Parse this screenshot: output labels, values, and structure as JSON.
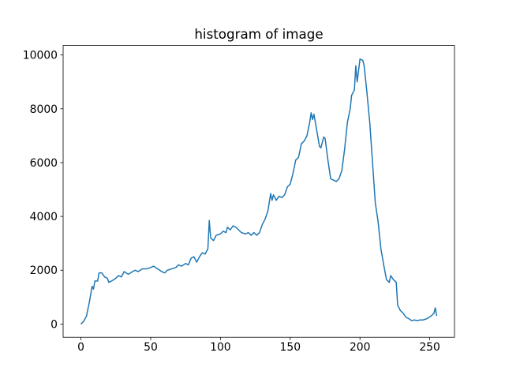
{
  "chart_data": {
    "type": "line",
    "title": "histogram of image",
    "color": "#1f77b4",
    "x": [
      0,
      2,
      4,
      6,
      8,
      9,
      10,
      12,
      13,
      15,
      17,
      19,
      20,
      22,
      25,
      27,
      29,
      31,
      34,
      37,
      39,
      41,
      44,
      47,
      50,
      52,
      55,
      58,
      60,
      62,
      65,
      68,
      70,
      72,
      75,
      77,
      79,
      81,
      83,
      85,
      87,
      89,
      91,
      92,
      93,
      95,
      97,
      100,
      102,
      104,
      105,
      107,
      109,
      111,
      113,
      115,
      118,
      120,
      122,
      124,
      126,
      128,
      130,
      132,
      134,
      136,
      137,
      138,
      140,
      142,
      144,
      146,
      148,
      150,
      152,
      154,
      156,
      158,
      160,
      162,
      164,
      165,
      166,
      167,
      169,
      171,
      172,
      174,
      175,
      177,
      179,
      181,
      183,
      185,
      187,
      189,
      191,
      193,
      194,
      196,
      197,
      198,
      200,
      202,
      203,
      205,
      207,
      209,
      211,
      213,
      215,
      217,
      219,
      221,
      222,
      224,
      226,
      227,
      229,
      231,
      233,
      235,
      237,
      239,
      241,
      243,
      245,
      247,
      249,
      251,
      253,
      254,
      255
    ],
    "values": [
      0,
      100,
      300,
      800,
      1400,
      1300,
      1600,
      1600,
      1900,
      1900,
      1750,
      1700,
      1550,
      1600,
      1700,
      1800,
      1750,
      1950,
      1850,
      1950,
      2000,
      1950,
      2050,
      2050,
      2100,
      2150,
      2050,
      1950,
      1900,
      2000,
      2050,
      2100,
      2200,
      2150,
      2250,
      2200,
      2450,
      2500,
      2300,
      2500,
      2650,
      2600,
      2800,
      3850,
      3200,
      3100,
      3300,
      3350,
      3450,
      3400,
      3600,
      3500,
      3650,
      3600,
      3500,
      3400,
      3350,
      3400,
      3300,
      3400,
      3300,
      3400,
      3700,
      3900,
      4200,
      4850,
      4600,
      4800,
      4600,
      4750,
      4700,
      4800,
      5100,
      5200,
      5600,
      6100,
      6200,
      6700,
      6800,
      7000,
      7500,
      7850,
      7600,
      7800,
      7200,
      6600,
      6550,
      6950,
      6900,
      6100,
      5400,
      5350,
      5300,
      5400,
      5700,
      6500,
      7500,
      8000,
      8500,
      8700,
      9600,
      9000,
      9850,
      9800,
      9600,
      8600,
      7500,
      6000,
      4500,
      3800,
      2800,
      2200,
      1650,
      1550,
      1800,
      1650,
      1550,
      700,
      500,
      400,
      250,
      200,
      130,
      150,
      130,
      150,
      150,
      180,
      230,
      300,
      400,
      600,
      300
    ],
    "xlim": [
      -12.75,
      267.75
    ],
    "ylim": [
      -493,
      10353
    ],
    "xticks": [
      0,
      50,
      100,
      150,
      200,
      250
    ],
    "yticks": [
      0,
      2000,
      4000,
      6000,
      8000,
      10000
    ]
  }
}
